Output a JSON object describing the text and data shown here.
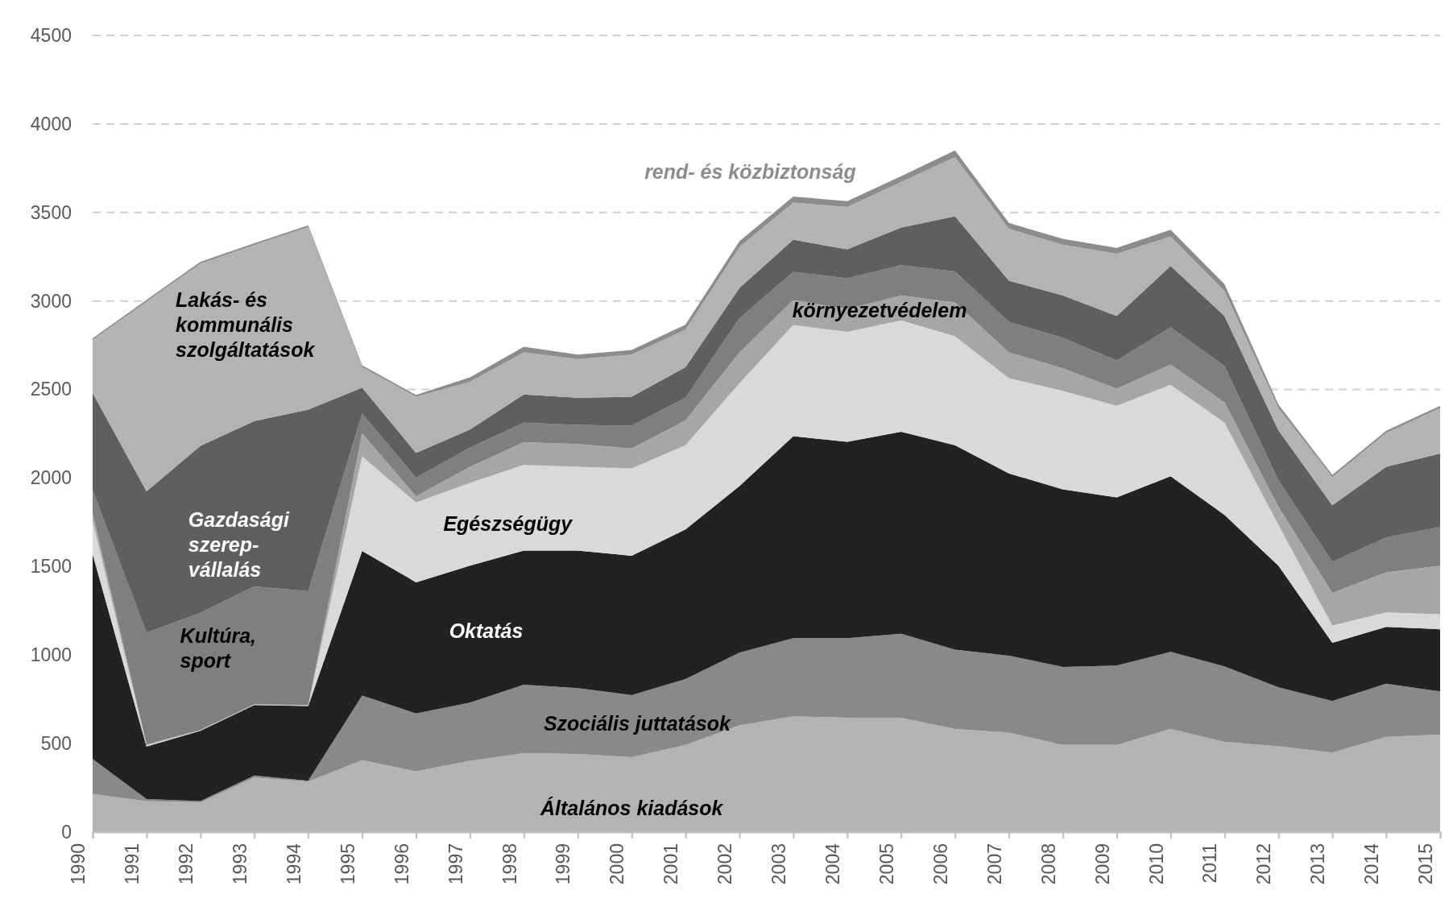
{
  "chart_data": {
    "type": "area",
    "stacked": true,
    "grid": "y",
    "categories": [
      "1990",
      "1991",
      "1992",
      "1993",
      "1994",
      "1995",
      "1996",
      "1997",
      "1998",
      "1999",
      "2000",
      "2001",
      "2002",
      "2003",
      "2004",
      "2005",
      "2006",
      "2007",
      "2008",
      "2009",
      "2010",
      "2011",
      "2012",
      "2013",
      "2014",
      "2015"
    ],
    "ylim": [
      0,
      4500
    ],
    "yticks": [
      0,
      500,
      1000,
      1500,
      2000,
      2500,
      3000,
      3500,
      4000,
      4500
    ],
    "series": [
      {
        "name": "Általános kiadások",
        "color": "#b3b3b3",
        "values": [
          215,
          175,
          168,
          308,
          285,
          406,
          343,
          403,
          446,
          441,
          423,
          492,
          603,
          654,
          646,
          646,
          582,
          562,
          492,
          492,
          582,
          510,
          485,
          449,
          538,
          551
        ]
      },
      {
        "name": "Szociális juttatások",
        "color": "#898989",
        "values": [
          198,
          12,
          7,
          12,
          5,
          365,
          327,
          328,
          387,
          372,
          351,
          372,
          410,
          441,
          449,
          474,
          449,
          435,
          441,
          449,
          436,
          426,
          333,
          292,
          300,
          244
        ]
      },
      {
        "name": "Oktatás",
        "color": "#222222",
        "values": [
          1157,
          296,
          397,
          398,
          422,
          817,
          741,
          774,
          757,
          777,
          787,
          846,
          941,
          1141,
          1110,
          1141,
          1154,
          1029,
          1003,
          949,
          992,
          856,
          687,
          328,
          321,
          351
        ]
      },
      {
        "name": "Egészségügy",
        "color": "#d9d9d9",
        "values": [
          187,
          7,
          3,
          2,
          3,
          535,
          451,
          467,
          484,
          474,
          493,
          475,
          582,
          628,
          621,
          629,
          615,
          538,
          556,
          518,
          516,
          521,
          231,
          98,
          82,
          85
        ]
      },
      {
        "name": "környezetvédelem",
        "color": "#a6a6a6",
        "values": [
          46,
          5,
          2,
          2,
          2,
          129,
          35,
          92,
          128,
          128,
          113,
          141,
          174,
          141,
          128,
          141,
          192,
          146,
          128,
          97,
          115,
          115,
          102,
          184,
          226,
          274
        ]
      },
      {
        "name": "Kultúra, sport",
        "color": "#7f7f7f",
        "values": [
          129,
          631,
          661,
          666,
          643,
          112,
          105,
          108,
          111,
          108,
          128,
          128,
          192,
          159,
          174,
          171,
          175,
          172,
          172,
          159,
          210,
          205,
          149,
          175,
          197,
          218
        ]
      },
      {
        "name": "Gazdasági szerep-vállalás",
        "color": "#5f5f5f",
        "values": [
          549,
          799,
          944,
          934,
          1027,
          147,
          140,
          102,
          159,
          154,
          164,
          172,
          172,
          182,
          164,
          213,
          312,
          233,
          239,
          251,
          346,
          282,
          282,
          320,
          400,
          415
        ]
      },
      {
        "name": "Lakás- és kommunális szolgáltatások",
        "color": "#b3b3b3",
        "values": [
          298,
          1071,
          1029,
          994,
          1030,
          116,
          317,
          270,
          238,
          218,
          238,
          212,
          231,
          210,
          239,
          257,
          334,
          293,
          287,
          352,
          167,
          141,
          126,
          159,
          190,
          257
        ]
      },
      {
        "name": "rend- és közbiztonság",
        "color": "#8c8c8c",
        "values": [
          10,
          10,
          10,
          10,
          10,
          10,
          10,
          25,
          31,
          25,
          26,
          28,
          33,
          34,
          33,
          33,
          38,
          33,
          33,
          33,
          38,
          39,
          20,
          13,
          13,
          13
        ]
      }
    ]
  }
}
